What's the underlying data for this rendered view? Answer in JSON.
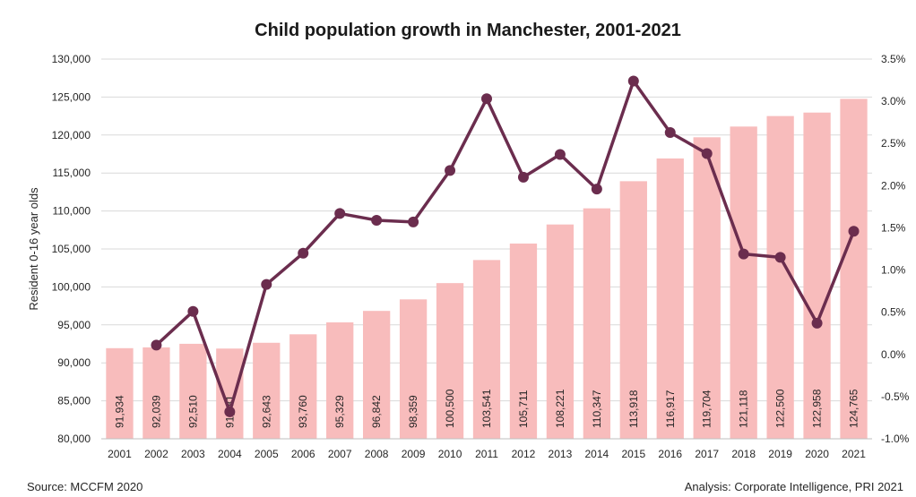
{
  "chart_data": {
    "type": "bar",
    "title": "Child population growth in Manchester, 2001-2021",
    "ylabel": "Resident 0-16 year olds",
    "y2label": "",
    "ylim": [
      80000,
      130000
    ],
    "yticks": [
      "80,000",
      "85,000",
      "90,000",
      "95,000",
      "100,000",
      "105,000",
      "110,000",
      "115,000",
      "120,000",
      "125,000",
      "130,000"
    ],
    "y2lim": [
      -1.0,
      3.5
    ],
    "y2ticks": [
      "-1.0%",
      "-0.5%",
      "0.0%",
      "0.5%",
      "1.0%",
      "1.5%",
      "2.0%",
      "2.5%",
      "3.0%",
      "3.5%"
    ],
    "categories": [
      "2001",
      "2002",
      "2003",
      "2004",
      "2005",
      "2006",
      "2007",
      "2008",
      "2009",
      "2010",
      "2011",
      "2012",
      "2013",
      "2014",
      "2015",
      "2016",
      "2017",
      "2018",
      "2019",
      "2020",
      "2021"
    ],
    "series": [
      {
        "type": "bar",
        "color": "#f8bcbc",
        "values": [
          91934,
          92039,
          92510,
          91881,
          92643,
          93760,
          95329,
          96842,
          98359,
          100500,
          103541,
          105711,
          108221,
          110347,
          113918,
          116917,
          119704,
          121118,
          122500,
          122958,
          124765
        ],
        "labels": [
          "91,934",
          "92,039",
          "92,510",
          "91,881",
          "92,643",
          "93,760",
          "95,329",
          "96,842",
          "98,359",
          "100,500",
          "103,541",
          "105,711",
          "108,221",
          "110,347",
          "113,918",
          "116,917",
          "119,704",
          "121,118",
          "122,500",
          "122,958",
          "124,765"
        ]
      },
      {
        "type": "line",
        "axis": "right",
        "color": "#6b2d4e",
        "values": [
          null,
          0.11,
          0.51,
          -0.68,
          0.83,
          1.2,
          1.67,
          1.59,
          1.57,
          2.18,
          3.03,
          2.1,
          2.37,
          1.96,
          3.24,
          2.63,
          2.38,
          1.19,
          1.15,
          0.37,
          1.46
        ]
      }
    ],
    "grid": true,
    "source": "Source: MCCFM 2020",
    "analysis": "Analysis: Corporate Intelligence, PRI 2021"
  }
}
